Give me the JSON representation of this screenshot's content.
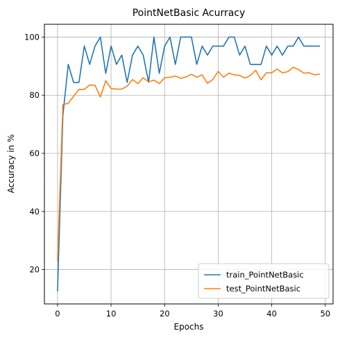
{
  "chart_data": {
    "type": "line",
    "title": "PointNetBasic Acurracy",
    "xlabel": "Epochs",
    "ylabel": "Accuracy in %",
    "xlim": [
      -2.45,
      51.45
    ],
    "ylim": [
      8.2,
      104.4
    ],
    "xticks": [
      0,
      10,
      20,
      30,
      40,
      50
    ],
    "yticks": [
      20,
      40,
      60,
      80,
      100
    ],
    "grid": true,
    "legend_position": "lower right",
    "x": [
      0,
      1,
      2,
      3,
      4,
      5,
      6,
      7,
      8,
      9,
      10,
      11,
      12,
      13,
      14,
      15,
      16,
      17,
      18,
      19,
      20,
      21,
      22,
      23,
      24,
      25,
      26,
      27,
      28,
      29,
      30,
      31,
      32,
      33,
      34,
      35,
      36,
      37,
      38,
      39,
      40,
      41,
      42,
      43,
      44,
      45,
      46,
      47,
      48,
      49
    ],
    "series": [
      {
        "name": "train_PointNetBasic",
        "color": "#1f77b4",
        "values": [
          12.5,
          73.0,
          90.6,
          84.4,
          84.4,
          96.9,
          90.6,
          96.9,
          100.0,
          87.5,
          96.9,
          90.6,
          93.8,
          84.4,
          93.8,
          96.9,
          93.8,
          84.4,
          100.0,
          87.5,
          96.9,
          100.0,
          90.6,
          100.0,
          100.0,
          100.0,
          90.6,
          96.9,
          93.8,
          96.9,
          96.9,
          96.9,
          100.0,
          100.0,
          93.8,
          96.9,
          90.6,
          90.6,
          90.6,
          96.9,
          93.8,
          96.9,
          93.8,
          96.9,
          96.9,
          100.0,
          96.9,
          96.9,
          96.9,
          96.9
        ]
      },
      {
        "name": "test_PointNetBasic",
        "color": "#ff7f0e",
        "values": [
          23.0,
          76.8,
          77.2,
          79.6,
          82.0,
          82.0,
          83.5,
          83.4,
          79.4,
          85.0,
          82.3,
          82.1,
          82.1,
          83.1,
          85.4,
          84.0,
          86.0,
          84.6,
          85.2,
          84.0,
          86.0,
          86.2,
          86.6,
          85.8,
          86.3,
          87.2,
          86.2,
          87.0,
          84.1,
          85.4,
          88.2,
          86.2,
          87.6,
          87.0,
          86.8,
          85.9,
          86.8,
          88.6,
          85.3,
          87.7,
          87.7,
          89.0,
          87.7,
          88.1,
          89.6,
          88.8,
          87.6,
          87.7,
          87.0,
          87.3
        ]
      }
    ]
  }
}
